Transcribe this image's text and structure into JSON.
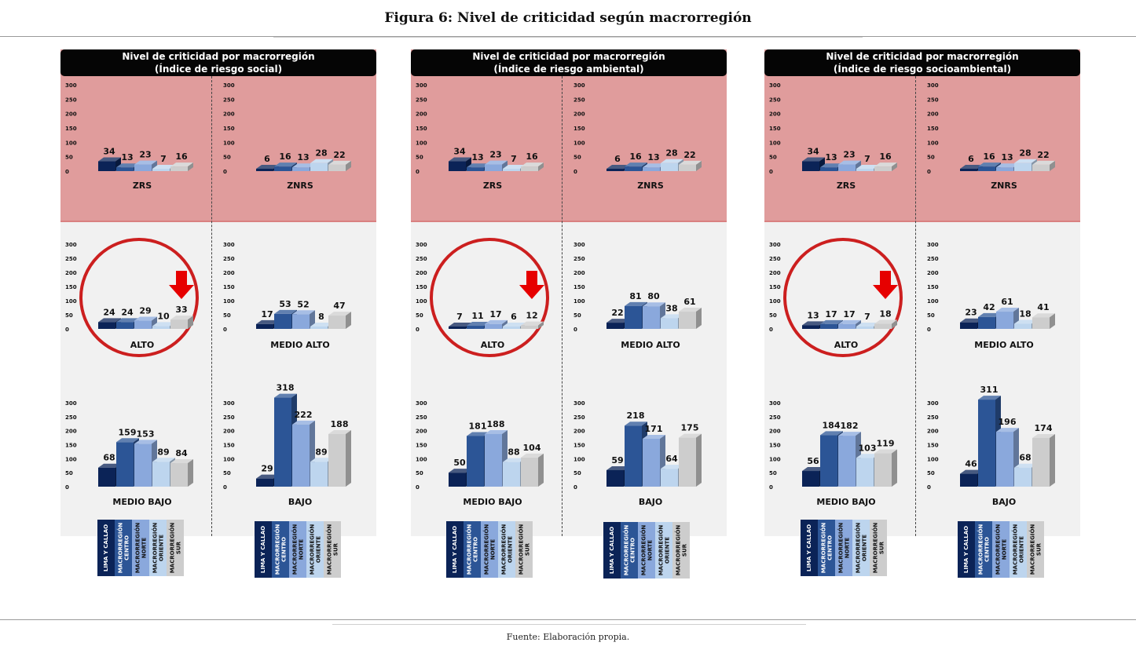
{
  "figure_title": "Figura 6: Nivel de criticidad según macrorregión",
  "source": "Fuente: Elaboración propia.",
  "colors": [
    "#0b2357",
    "#2c5596",
    "#8aa8dc",
    "#bdd5ee",
    "#cdcdcd"
  ],
  "legend": [
    {
      "label": "LIMA Y CALLAO",
      "color": "#0b2357",
      "text_color": "#ffffff"
    },
    {
      "label": "MACRORREGIÓN\nCENTRO",
      "color": "#2c5596",
      "text_color": "#ffffff"
    },
    {
      "label": "MACRORREGIÓN\nNORTE",
      "color": "#8aa8dc",
      "text_color": "#111111"
    },
    {
      "label": "MACRORREGIÓN\nORIENTE",
      "color": "#bdd5ee",
      "text_color": "#111111"
    },
    {
      "label": "MACRORREGIÓN\nSUR",
      "color": "#cdcdcd",
      "text_color": "#111111"
    }
  ],
  "chart_data": [
    {
      "type": "bar",
      "title": "Nivel de criticidad por macrorregión (Índice de riesgo social)",
      "title_line1": "Nivel de criticidad por macrorregión",
      "title_line2": "(Índice de riesgo social)",
      "series_names": [
        "LIMA Y CALLAO",
        "MACRORREGIÓN CENTRO",
        "MACRORREGIÓN NORTE",
        "MACRORREGIÓN ORIENTE",
        "MACRORREGIÓN SUR"
      ],
      "y_ticks": [
        "300",
        "250",
        "200",
        "150",
        "100",
        "50",
        "0"
      ],
      "ylim": [
        0,
        300
      ],
      "subcharts": [
        {
          "label": "ZRS",
          "values": [
            34,
            13,
            23,
            7,
            16
          ]
        },
        {
          "label": "ZNRS",
          "values": [
            6,
            16,
            13,
            28,
            22
          ]
        },
        {
          "label": "ALTO",
          "values": [
            24,
            24,
            29,
            10,
            33
          ],
          "highlight": true
        },
        {
          "label": "MEDIO ALTO",
          "values": [
            17,
            53,
            52,
            8,
            47
          ]
        },
        {
          "label": "MEDIO BAJO",
          "values": [
            68,
            159,
            153,
            89,
            84
          ]
        },
        {
          "label": "BAJO",
          "values": [
            29,
            318,
            222,
            89,
            188
          ]
        }
      ]
    },
    {
      "type": "bar",
      "title": "Nivel de criticidad por macrorregión (Índice de riesgo ambiental)",
      "title_line1": "Nivel de criticidad por macrorregión",
      "title_line2": "(Índice de riesgo ambiental)",
      "series_names": [
        "LIMA Y CALLAO",
        "MACRORREGIÓN CENTRO",
        "MACRORREGIÓN NORTE",
        "MACRORREGIÓN ORIENTE",
        "MACRORREGIÓN SUR"
      ],
      "y_ticks": [
        "300",
        "250",
        "200",
        "150",
        "100",
        "50",
        "0"
      ],
      "ylim": [
        0,
        300
      ],
      "subcharts": [
        {
          "label": "ZRS",
          "values": [
            34,
            13,
            23,
            7,
            16
          ]
        },
        {
          "label": "ZNRS",
          "values": [
            6,
            16,
            13,
            28,
            22
          ]
        },
        {
          "label": "ALTO",
          "values": [
            7,
            11,
            17,
            6,
            12
          ],
          "highlight": true
        },
        {
          "label": "MEDIO ALTO",
          "values": [
            22,
            81,
            80,
            38,
            61
          ]
        },
        {
          "label": "MEDIO BAJO",
          "values": [
            50,
            181,
            188,
            88,
            104
          ]
        },
        {
          "label": "BAJO",
          "values": [
            59,
            218,
            171,
            64,
            175
          ]
        }
      ]
    },
    {
      "type": "bar",
      "title": "Nivel de criticidad por macrorregión (Índice de riesgo socioambiental)",
      "title_line1": "Nivel de criticidad por macrorregión",
      "title_line2": "(Índice de riesgo socioambiental)",
      "series_names": [
        "LIMA Y CALLAO",
        "MACRORREGIÓN CENTRO",
        "MACRORREGIÓN NORTE",
        "MACRORREGIÓN ORIENTE",
        "MACRORREGIÓN SUR"
      ],
      "y_ticks": [
        "300",
        "250",
        "200",
        "150",
        "100",
        "50",
        "0"
      ],
      "ylim": [
        0,
        300
      ],
      "subcharts": [
        {
          "label": "ZRS",
          "values": [
            34,
            13,
            23,
            7,
            16
          ]
        },
        {
          "label": "ZNRS",
          "values": [
            6,
            16,
            13,
            28,
            22
          ]
        },
        {
          "label": "ALTO",
          "values": [
            13,
            17,
            17,
            7,
            18
          ],
          "highlight": true
        },
        {
          "label": "MEDIO ALTO",
          "values": [
            23,
            42,
            61,
            18,
            41
          ]
        },
        {
          "label": "MEDIO BAJO",
          "values": [
            56,
            184,
            182,
            103,
            119
          ]
        },
        {
          "label": "BAJO",
          "values": [
            46,
            311,
            196,
            68,
            174
          ]
        }
      ]
    }
  ]
}
